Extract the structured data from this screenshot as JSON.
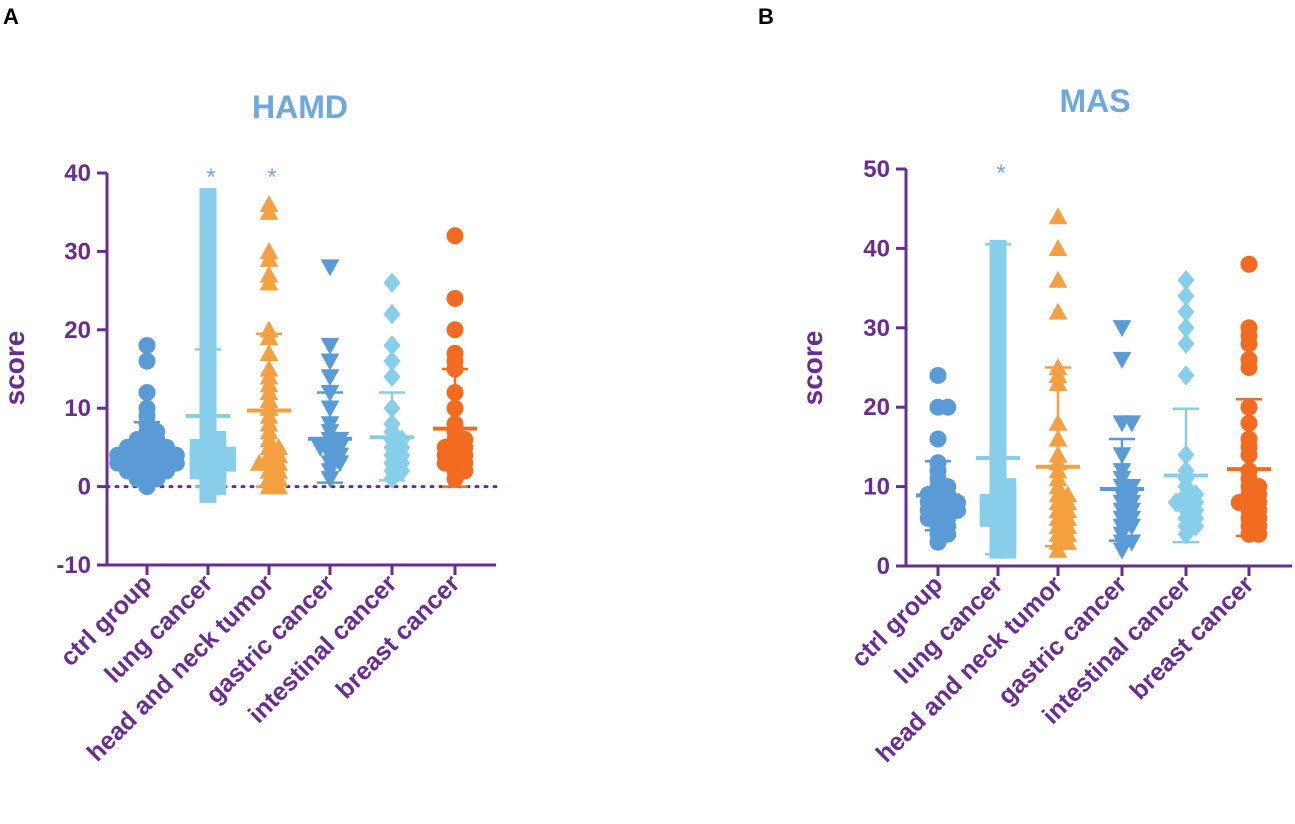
{
  "figure": {
    "panels": [
      "A",
      "B"
    ],
    "axis_color": "#6a2c91",
    "title_color": "#6fa8dc",
    "group_colors": [
      "#5b9bd5",
      "#87ceeb",
      "#f5a040",
      "#5b9bd5",
      "#87ceeb",
      "#f26b21"
    ],
    "group_markers": [
      "circle",
      "square",
      "triangle-up",
      "triangle-down",
      "diamond",
      "circle"
    ]
  },
  "chart_data": [
    {
      "type": "scatter",
      "title": "HAMD",
      "ylabel": "score",
      "xlabel": "",
      "ylim": [
        -10,
        40
      ],
      "yticks": [
        -10,
        0,
        10,
        20,
        30,
        40
      ],
      "ytick_labels": [
        "-10",
        "0",
        "10",
        "20",
        "30",
        "40"
      ],
      "reference_line_y": 0,
      "categories": [
        "ctrl group",
        "lung cancer",
        "head and neck tumor",
        "gastric cancer",
        "intestinal cancer",
        "breast cancer"
      ],
      "significance": [
        "",
        "*",
        "*",
        "",
        "",
        ""
      ],
      "mean": [
        4.2,
        9.0,
        9.7,
        6.1,
        6.3,
        7.4
      ],
      "error_bar": [
        [
          0.5,
          8.2
        ],
        [
          0,
          17.5
        ],
        [
          0,
          19.5
        ],
        [
          0.5,
          12.0
        ],
        [
          0.8,
          12.0
        ],
        [
          0,
          15.0
        ]
      ],
      "points": [
        [
          18,
          16,
          12,
          10,
          9,
          8,
          7,
          7,
          6,
          6,
          6,
          5,
          5,
          5,
          5,
          5,
          4,
          4,
          4,
          4,
          4,
          4,
          4,
          3,
          3,
          3,
          3,
          3,
          3,
          3,
          2,
          2,
          2,
          2,
          2,
          1,
          1,
          1,
          0
        ],
        [
          37,
          36,
          35,
          34,
          33,
          32,
          31,
          30,
          29,
          28,
          27,
          26,
          25,
          24,
          23,
          22,
          21,
          20,
          19,
          18,
          17,
          16,
          15,
          14,
          13,
          12,
          11,
          10,
          9,
          8,
          7,
          6,
          6,
          5,
          5,
          5,
          4,
          4,
          4,
          4,
          3,
          3,
          3,
          3,
          2,
          2,
          2,
          1,
          1,
          0,
          0,
          -1
        ],
        [
          36,
          35,
          30,
          29,
          27,
          26,
          20,
          19,
          17,
          15,
          14,
          13,
          12,
          11,
          10,
          9,
          8,
          7,
          6,
          5,
          5,
          4,
          4,
          3,
          3,
          3,
          2,
          2,
          1,
          1,
          0,
          0
        ],
        [
          28,
          18,
          16,
          14,
          12,
          10,
          8,
          7,
          6,
          6,
          5,
          5,
          5,
          4,
          4,
          3,
          3,
          2,
          1
        ],
        [
          26,
          22,
          18,
          16,
          14,
          10,
          8,
          7,
          6,
          6,
          5,
          5,
          4,
          4,
          3,
          3,
          2,
          2,
          1
        ],
        [
          32,
          24,
          20,
          17,
          16,
          15,
          12,
          10,
          8,
          7,
          6,
          6,
          5,
          5,
          5,
          4,
          4,
          4,
          3,
          3,
          3,
          2,
          2,
          1
        ]
      ]
    },
    {
      "type": "scatter",
      "title": "MAS",
      "ylabel": "score",
      "xlabel": "",
      "ylim": [
        0,
        50
      ],
      "yticks": [
        0,
        10,
        20,
        30,
        40,
        50
      ],
      "ytick_labels": [
        "0",
        "10",
        "20",
        "30",
        "40",
        "50"
      ],
      "reference_line_y": null,
      "categories": [
        "ctrl group",
        "lung cancer",
        "head and neck tumor",
        "gastric cancer",
        "intestinal cancer",
        "breast cancer"
      ],
      "significance": [
        "",
        "*",
        "",
        "",
        "",
        ""
      ],
      "mean": [
        8.9,
        13.6,
        12.5,
        9.7,
        11.4,
        12.2
      ],
      "error_bar": [
        [
          4.5,
          13.2
        ],
        [
          1.5,
          40.5
        ],
        [
          2.5,
          25.0
        ],
        [
          3.2,
          16.0
        ],
        [
          3.0,
          19.8
        ],
        [
          3.8,
          21.0
        ]
      ],
      "points": [
        [
          24,
          20,
          20,
          16,
          13,
          12,
          11,
          10,
          10,
          9,
          9,
          9,
          8,
          8,
          8,
          8,
          7,
          7,
          7,
          7,
          6,
          6,
          6,
          5,
          5,
          4,
          4,
          3
        ],
        [
          40,
          39,
          38,
          37,
          36,
          35,
          34,
          33,
          32,
          31,
          30,
          29,
          28,
          27,
          26,
          25,
          24,
          23,
          22,
          21,
          20,
          19,
          18,
          17,
          16,
          15,
          14,
          13,
          12,
          11,
          10,
          10,
          9,
          9,
          8,
          8,
          8,
          7,
          7,
          7,
          6,
          6,
          6,
          5,
          5,
          4,
          4,
          3,
          3,
          2,
          2
        ],
        [
          44,
          40,
          36,
          32,
          25,
          24,
          23,
          18,
          16,
          14,
          13,
          12,
          11,
          10,
          9,
          9,
          8,
          8,
          7,
          7,
          6,
          6,
          5,
          5,
          4,
          4,
          3,
          3,
          2
        ],
        [
          30,
          26,
          18,
          18,
          14,
          12,
          11,
          10,
          10,
          9,
          9,
          8,
          8,
          7,
          7,
          6,
          6,
          5,
          5,
          4,
          3,
          3,
          2
        ],
        [
          36,
          34,
          32,
          30,
          28,
          24,
          14,
          12,
          11,
          10,
          9,
          9,
          8,
          8,
          8,
          7,
          7,
          6,
          6,
          5,
          5,
          4
        ],
        [
          38,
          30,
          29,
          28,
          26,
          25,
          20,
          18,
          16,
          15,
          14,
          12,
          11,
          10,
          10,
          9,
          9,
          8,
          8,
          8,
          7,
          7,
          6,
          6,
          5,
          5,
          4,
          4
        ]
      ]
    }
  ]
}
